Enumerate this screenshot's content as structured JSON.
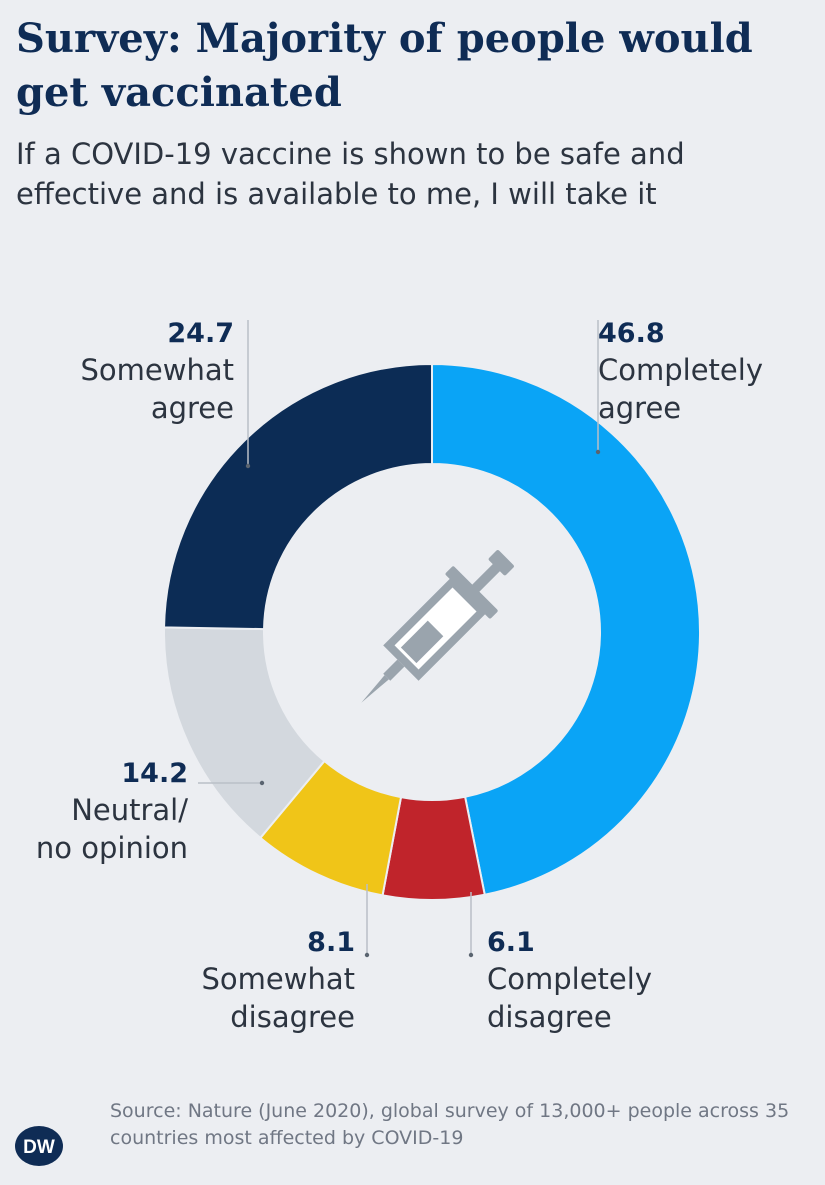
{
  "title": "Survey: Majority of people would get vaccinated",
  "subtitle": "If a COVID-19 vaccine is shown to be safe and effective and is available to me, I will take it",
  "source": "Source: Nature (June 2020), global survey of 13,000+ people across 35 countries most affected by COVID-19",
  "logo_text": "DW",
  "chart_data": {
    "type": "pie",
    "donut": true,
    "center_icon": "syringe-icon",
    "slices": [
      {
        "value": 46.8,
        "label": "46.8",
        "category": [
          "Completely",
          "agree"
        ],
        "color": "#0aa4f6"
      },
      {
        "value": 6.1,
        "label": "6.1",
        "category": [
          "Completely",
          "disagree"
        ],
        "color": "#c0242b"
      },
      {
        "value": 8.1,
        "label": "8.1",
        "category": [
          "Somewhat",
          "disagree"
        ],
        "color": "#f0c518"
      },
      {
        "value": 14.2,
        "label": "14.2",
        "category": [
          "Neutral/",
          "no opinion"
        ],
        "color": "#d3d8de"
      },
      {
        "value": 24.7,
        "label": "24.7",
        "category": [
          "Somewhat",
          "agree"
        ],
        "color": "#0c2c55"
      }
    ]
  }
}
